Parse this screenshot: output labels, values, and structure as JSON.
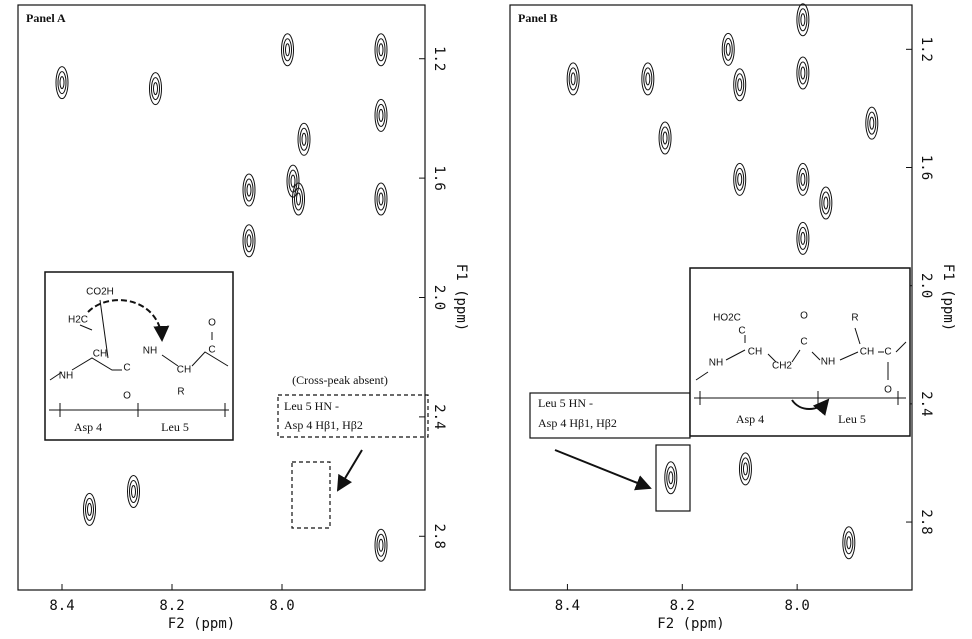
{
  "chart_data": [
    {
      "type": "contour",
      "title": "Panel A",
      "x_label": "F2 (ppm)",
      "y_label": "F1 (ppm)",
      "xlim": [
        8.48,
        7.74
      ],
      "ylim": [
        1.02,
        2.98
      ],
      "xticks": [
        8.4,
        8.2,
        {
          "value": 8,
          "label": "8.0"
        }
      ],
      "yticks": [
        1.2,
        1.6,
        {
          "value": 2,
          "label": "2.0"
        },
        2.4,
        2.8
      ],
      "x": [
        8.4,
        8.23,
        7.99,
        7.82,
        7.82,
        7.96,
        7.98,
        8.06,
        7.82,
        7.97,
        8.06,
        8.35,
        8.27,
        7.82
      ],
      "values": [
        1.28,
        1.3,
        1.17,
        1.17,
        1.39,
        1.47,
        1.61,
        1.64,
        1.67,
        1.67,
        1.81,
        2.71,
        2.65,
        2.83
      ],
      "color": "#111",
      "annotations": [
        "(Cross-peak absent)",
        "Leu 5 HN -",
        "Asp 4 Hβ1, Hβ2"
      ],
      "inset_labels": [
        "CO2H",
        "H2C",
        "NH",
        "CH",
        "NH",
        "C",
        "O",
        "CH",
        "R",
        "O",
        "C",
        "Asp 4",
        "Leu 5"
      ]
    },
    {
      "type": "contour",
      "title": "Panel B",
      "x_label": "F2 (ppm)",
      "y_label": "F1 (ppm)",
      "xlim": [
        8.5,
        7.8
      ],
      "ylim": [
        1.05,
        3.03
      ],
      "xticks": [
        8.4,
        8.2,
        {
          "value": 8,
          "label": "8.0"
        }
      ],
      "yticks": [
        1.2,
        1.6,
        {
          "value": 2,
          "label": "2.0"
        },
        2.4,
        2.8
      ],
      "x": [
        8.39,
        8.26,
        8.12,
        8.1,
        7.99,
        7.99,
        7.87,
        8.23,
        8.1,
        7.99,
        7.95,
        8.22,
        8.09,
        7.91,
        7.99
      ],
      "values": [
        1.3,
        1.3,
        1.2,
        1.32,
        1.28,
        1.1,
        1.45,
        1.5,
        1.64,
        1.64,
        1.72,
        2.65,
        2.62,
        2.87,
        1.84
      ],
      "color": "#111",
      "annotations": [
        "Leu 5 HN -",
        "Asp 4 Hβ1, Hβ2"
      ],
      "inset_labels": [
        "HO2C",
        "C",
        "CH",
        "NH",
        "CH2",
        "O",
        "C",
        "NH",
        "R",
        "CH",
        "C",
        "O",
        "Asp 4",
        "Leu 5"
      ]
    }
  ]
}
